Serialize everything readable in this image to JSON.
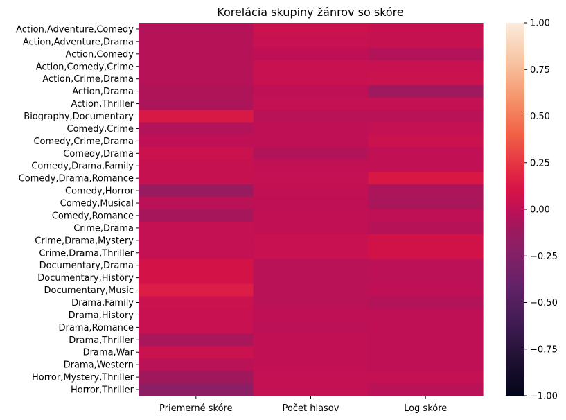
{
  "chart_data": {
    "type": "heatmap",
    "title": "Korelácia skupiny žánrov so skóre",
    "xlabel": "",
    "ylabel": "",
    "columns": [
      "Priemerné skóre",
      "Počet hlasov",
      "Log skóre"
    ],
    "rows": [
      "Action,Adventure,Comedy",
      "Action,Adventure,Drama",
      "Action,Comedy",
      "Action,Comedy,Crime",
      "Action,Crime,Drama",
      "Action,Drama",
      "Action,Thriller",
      "Biography,Documentary",
      "Comedy,Crime",
      "Comedy,Crime,Drama",
      "Comedy,Drama",
      "Comedy,Drama,Family",
      "Comedy,Drama,Romance",
      "Comedy,Horror",
      "Comedy,Musical",
      "Comedy,Romance",
      "Crime,Drama",
      "Crime,Drama,Mystery",
      "Crime,Drama,Thriller",
      "Documentary,Drama",
      "Documentary,History",
      "Documentary,Music",
      "Drama,Family",
      "Drama,History",
      "Drama,Romance",
      "Drama,Thriller",
      "Drama,War",
      "Drama,Western",
      "Horror,Mystery,Thriller",
      "Horror,Thriller"
    ],
    "values": [
      [
        -0.04,
        0.05,
        0.03
      ],
      [
        -0.03,
        0.04,
        0.03
      ],
      [
        -0.03,
        0.0,
        -0.04
      ],
      [
        -0.03,
        0.04,
        0.04
      ],
      [
        -0.03,
        0.04,
        0.05
      ],
      [
        -0.05,
        0.0,
        -0.11
      ],
      [
        -0.06,
        0.02,
        0.02
      ],
      [
        0.13,
        -0.02,
        -0.02
      ],
      [
        -0.04,
        0.0,
        0.02
      ],
      [
        0.0,
        0.0,
        0.05
      ],
      [
        0.05,
        -0.04,
        0.01
      ],
      [
        0.03,
        0.01,
        0.01
      ],
      [
        0.03,
        0.02,
        0.12
      ],
      [
        -0.14,
        0.01,
        -0.06
      ],
      [
        -0.02,
        0.0,
        -0.07
      ],
      [
        -0.08,
        0.01,
        0.0
      ],
      [
        0.02,
        0.01,
        -0.03
      ],
      [
        0.02,
        0.04,
        0.08
      ],
      [
        0.02,
        0.04,
        0.08
      ],
      [
        0.09,
        -0.02,
        -0.01
      ],
      [
        0.09,
        -0.02,
        -0.01
      ],
      [
        0.15,
        -0.02,
        0.0
      ],
      [
        0.05,
        -0.02,
        -0.04
      ],
      [
        0.04,
        0.0,
        0.0
      ],
      [
        0.04,
        -0.01,
        0.0
      ],
      [
        -0.07,
        0.01,
        0.0
      ],
      [
        0.05,
        0.01,
        0.0
      ],
      [
        -0.02,
        0.01,
        0.0
      ],
      [
        -0.1,
        0.02,
        0.02
      ],
      [
        -0.2,
        0.02,
        -0.02
      ]
    ],
    "colorbar": {
      "range": [
        -1.0,
        1.0
      ],
      "ticks": [
        "1.00",
        "0.75",
        "0.50",
        "0.25",
        "0.00",
        "−0.25",
        "−0.50",
        "−0.75",
        "−1.00"
      ],
      "tick_values": [
        1.0,
        0.75,
        0.5,
        0.25,
        0.0,
        -0.25,
        -0.5,
        -0.75,
        -1.0
      ]
    },
    "colormap": "rocket"
  }
}
